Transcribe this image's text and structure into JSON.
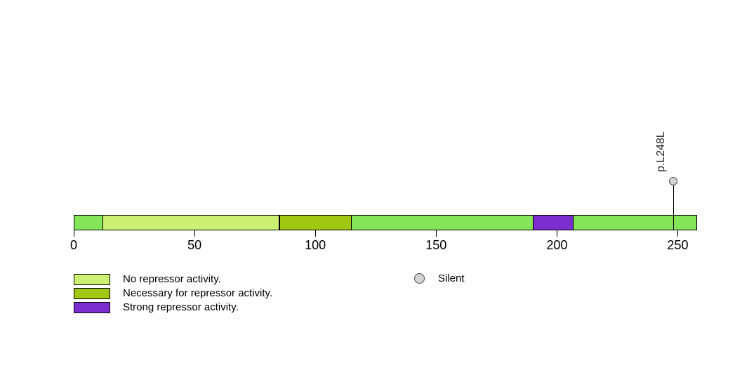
{
  "chart_data": {
    "type": "lollipop",
    "title": "",
    "axis": {
      "min": 0,
      "tick_values": [
        0,
        50,
        100,
        150,
        200,
        250
      ],
      "tick_labels": [
        "0",
        "50",
        "100",
        "150",
        "200",
        "250"
      ]
    },
    "protein_length": 258,
    "backbone_color": "#84E45A",
    "outline_color": "#000000",
    "domains": [
      {
        "label": "No repressor activity.",
        "start": 12,
        "end": 85,
        "color": "#CBF072"
      },
      {
        "label": "Necessary for repressor activity.",
        "start": 85,
        "end": 115,
        "color": "#A1C614"
      },
      {
        "label": "Strong repressor activity.",
        "start": 190,
        "end": 207,
        "color": "#7A2ECE"
      }
    ],
    "mutations": [
      {
        "label": "p.L248L",
        "position": 248,
        "class": "Silent",
        "marker_fill": "#D3D3D3",
        "marker_stroke": "#4D4D4D"
      }
    ],
    "legend": {
      "domain_items": [
        {
          "label": "No repressor activity.",
          "color": "#CBF072"
        },
        {
          "label": "Necessary for repressor activity.",
          "color": "#A1C614"
        },
        {
          "label": "Strong repressor activity.",
          "color": "#7A2ECE"
        }
      ],
      "mutation_items": [
        {
          "label": "Silent",
          "fill": "#D3D3D3",
          "stroke": "#4D4D4D"
        }
      ]
    }
  }
}
